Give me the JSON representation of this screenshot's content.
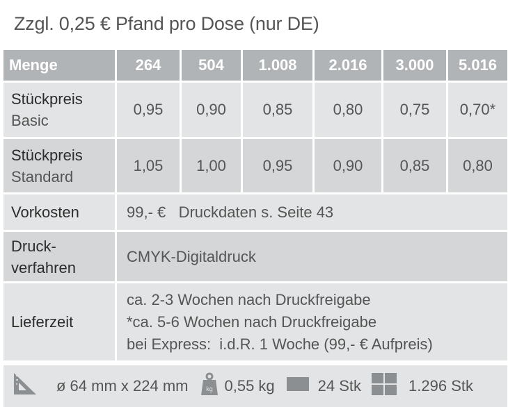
{
  "note": "Zzgl. 0,25 € Pfand pro Dose (nur DE)",
  "table": {
    "header": {
      "label": "Menge",
      "quantities": [
        "264",
        "504",
        "1.008",
        "2.016",
        "3.000",
        "5.016"
      ]
    },
    "basic": {
      "label": "Stückpreis",
      "sublabel": "Basic",
      "prices": [
        "0,95",
        "0,90",
        "0,85",
        "0,80",
        "0,75",
        "0,70*"
      ]
    },
    "standard": {
      "label": "Stückpreis",
      "sublabel": "Standard",
      "prices": [
        "1,05",
        "1,00",
        "0,95",
        "0,90",
        "0,85",
        "0,80"
      ]
    },
    "setup": {
      "label": "Vorkosten",
      "value": "99,- €   Druckdaten s. Seite 43"
    },
    "printing": {
      "label_line1": "Druck-",
      "label_line2": "verfahren",
      "value": "CMYK-Digitaldruck"
    },
    "delivery": {
      "label": "Lieferzeit",
      "line1": "ca. 2-3 Wochen nach Druckfreigabe",
      "line2": "*ca. 5-6 Wochen nach Druckfreigabe",
      "line3": "bei Express:  i.d.R. 1 Woche (99,- € Aufpreis)"
    }
  },
  "footer": {
    "dimensions": "ø 64 mm x 224 mm",
    "weight": "0,55 kg",
    "weight_icon_label": "kg",
    "pack": "24 Stk",
    "pallet": "1.296 Stk"
  }
}
